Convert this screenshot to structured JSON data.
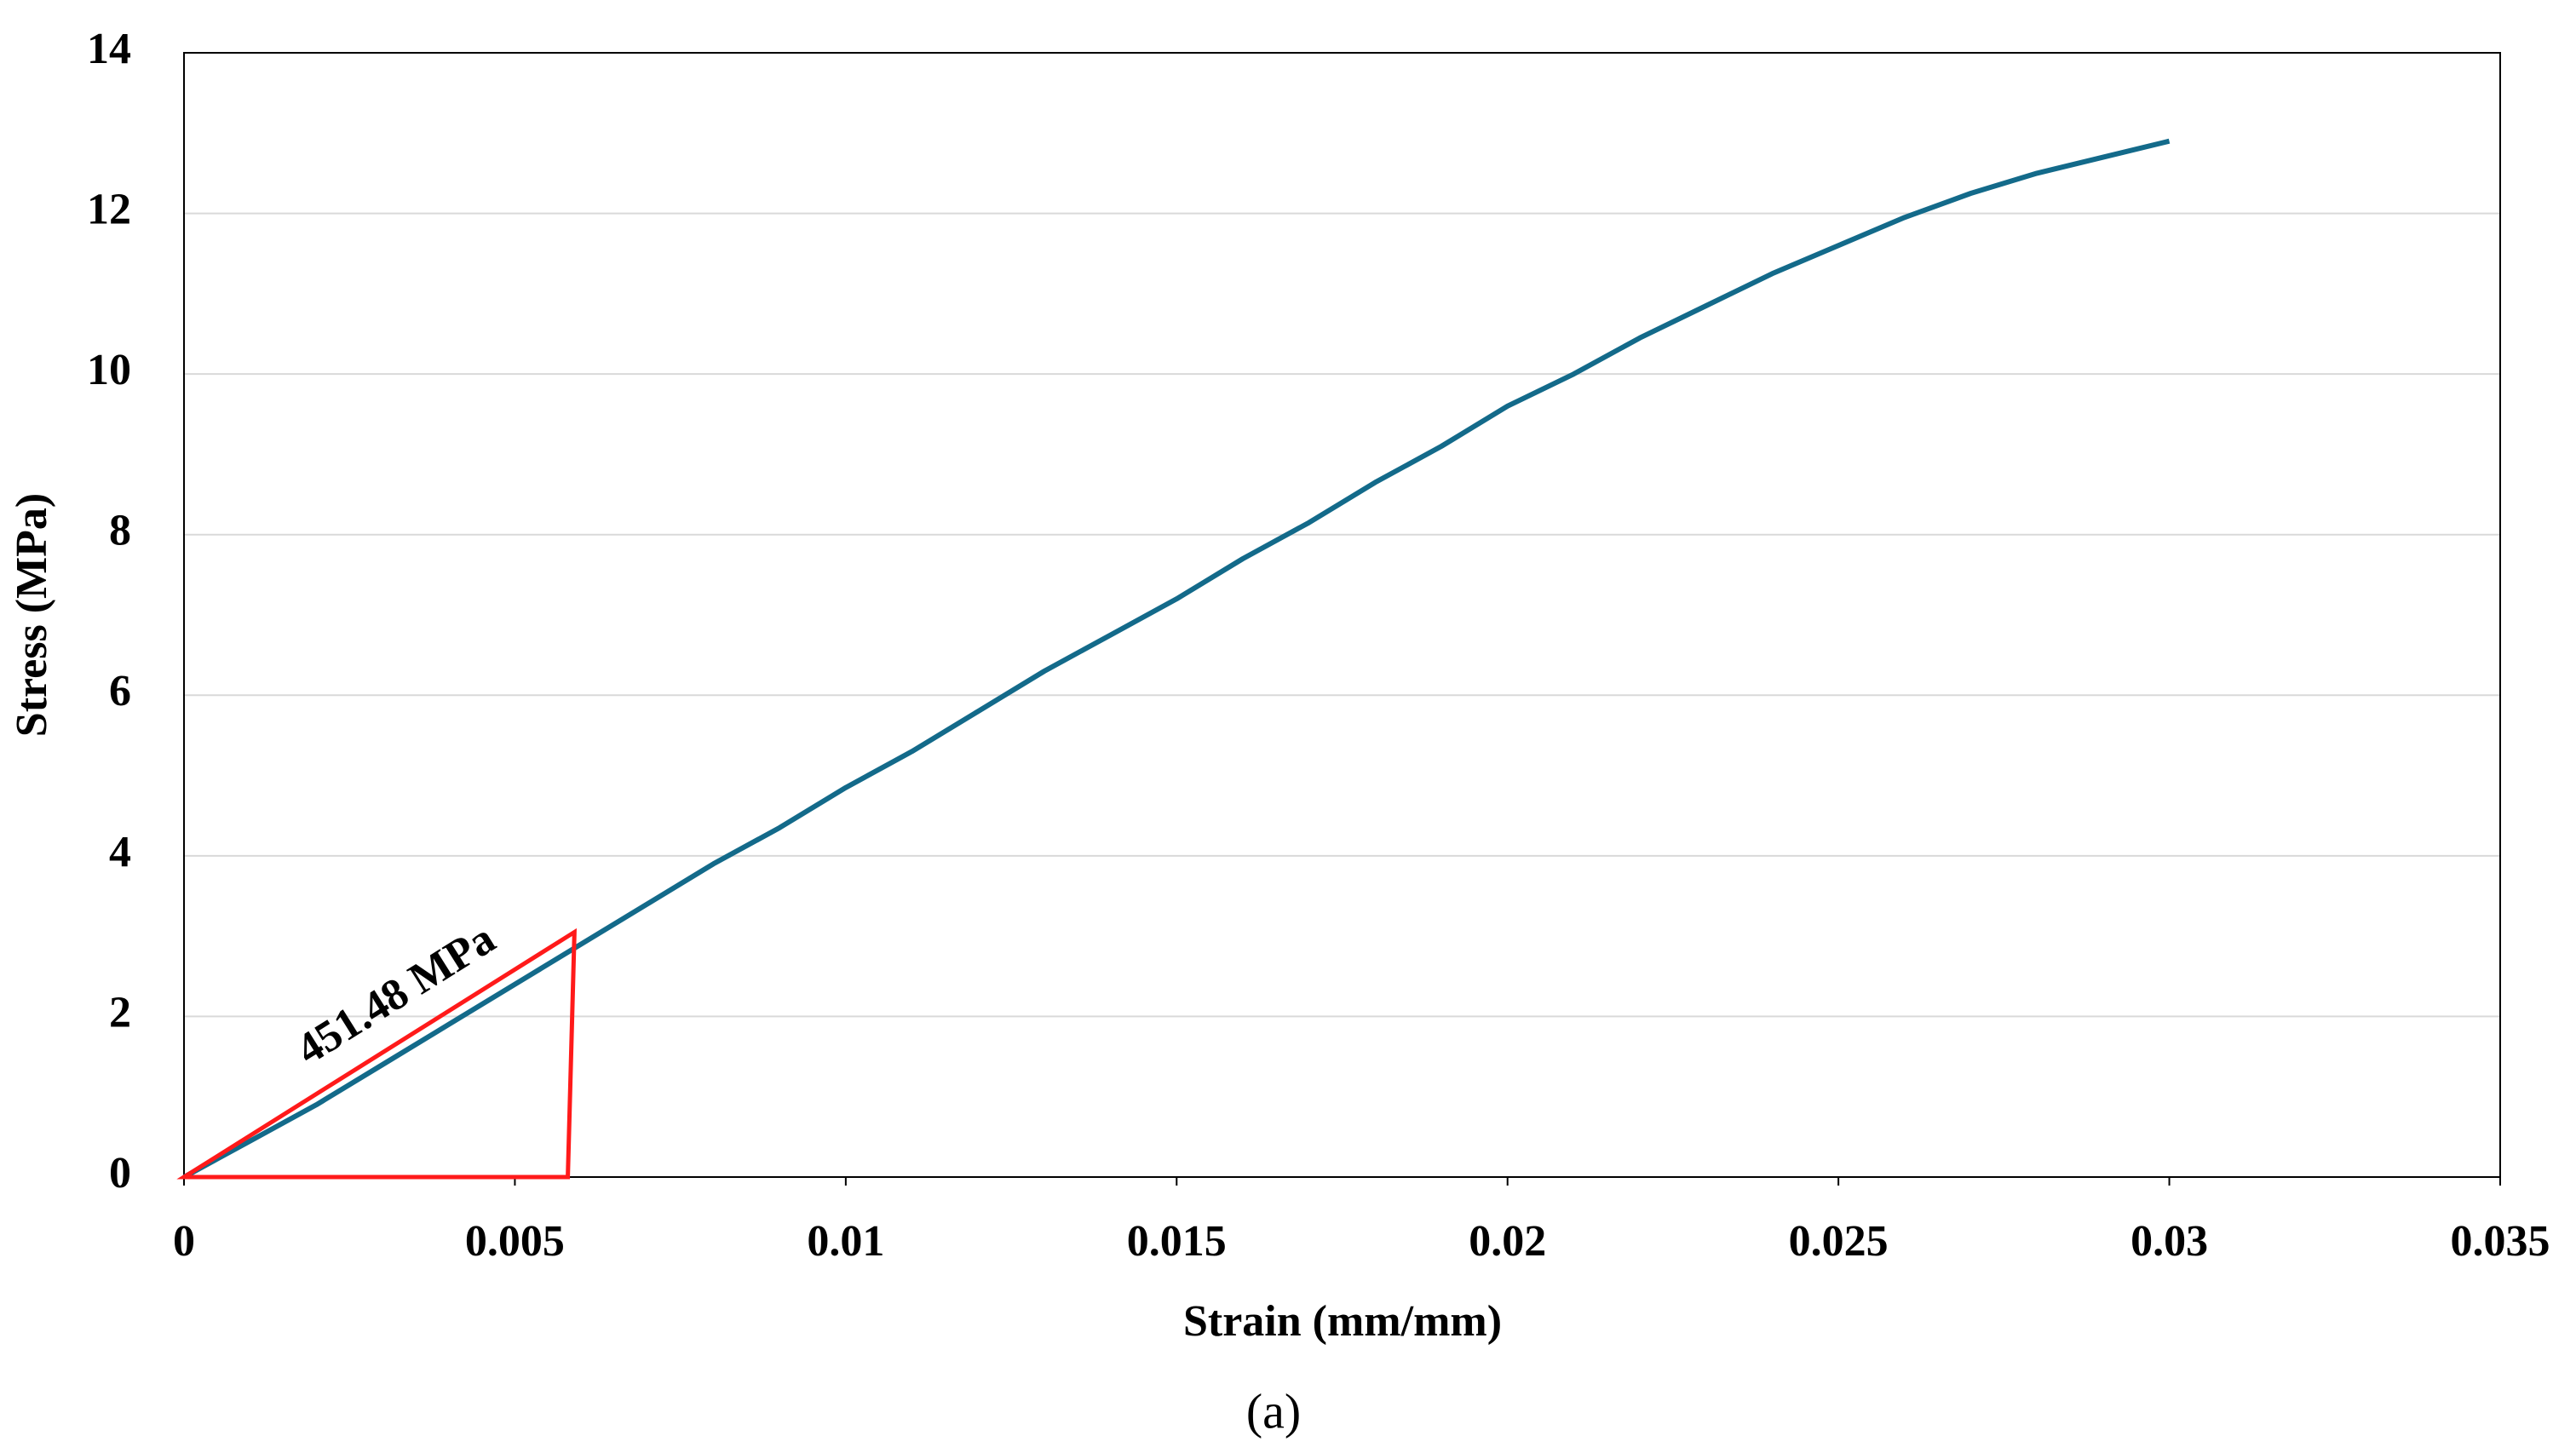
{
  "chart_data": {
    "type": "line",
    "xlabel": "Strain (mm/mm)",
    "ylabel": "Stress (MPa)",
    "caption": "(a)",
    "x": [
      0,
      0.001,
      0.002,
      0.003,
      0.004,
      0.005,
      0.006,
      0.007,
      0.008,
      0.009,
      0.01,
      0.011,
      0.012,
      0.013,
      0.014,
      0.015,
      0.016,
      0.017,
      0.018,
      0.019,
      0.02,
      0.021,
      0.022,
      0.023,
      0.024,
      0.025,
      0.026,
      0.027,
      0.028,
      0.029,
      0.03
    ],
    "series": [
      {
        "color": "#136a8a",
        "values": [
          0,
          0.45,
          0.9,
          1.4,
          1.9,
          2.4,
          2.9,
          3.4,
          3.9,
          4.35,
          4.85,
          5.3,
          5.8,
          6.3,
          6.75,
          7.2,
          7.7,
          8.15,
          8.65,
          9.1,
          9.6,
          10.0,
          10.45,
          10.85,
          11.25,
          11.6,
          11.95,
          12.25,
          12.5,
          12.7,
          12.9
        ]
      }
    ],
    "xlim": [
      0,
      0.035
    ],
    "xticks": [
      0,
      0.005,
      0.01,
      0.015,
      0.02,
      0.025,
      0.03,
      0.035
    ],
    "ylim": [
      0,
      14
    ],
    "yticks": [
      0,
      2,
      4,
      6,
      8,
      10,
      12,
      14
    ],
    "grid": true,
    "triangle": {
      "text": "451.48 MPa",
      "color": "#ff1a1a",
      "x": [
        0,
        0.0059,
        0.0058
      ],
      "y": [
        0,
        3.05,
        0
      ]
    }
  }
}
